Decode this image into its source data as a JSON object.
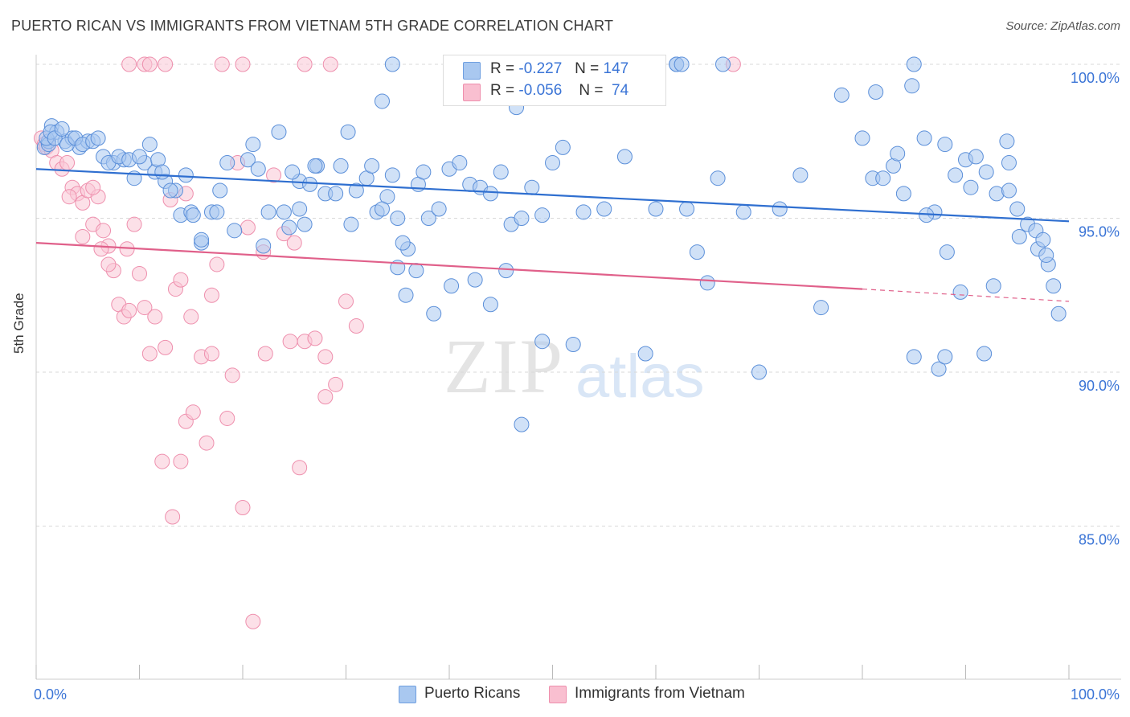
{
  "title": "PUERTO RICAN VS IMMIGRANTS FROM VIETNAM 5TH GRADE CORRELATION CHART",
  "source": "Source: ZipAtlas.com",
  "watermark": {
    "zip": "ZIP",
    "atlas": "atlas"
  },
  "legend": {
    "r_label": "R =",
    "n_label": "N =",
    "items": [
      {
        "r": "-0.227",
        "n": "147",
        "color": "#a9c8f0",
        "border": "#6f9fe0"
      },
      {
        "r": "-0.056",
        "n": " 74",
        "color": "#f9bfd0",
        "border": "#ee8fad"
      }
    ]
  },
  "colors": {
    "blue_fill": "#a9c8f0",
    "blue_stroke": "#5b8fd9",
    "blue_line": "#2f6fd0",
    "pink_fill": "#f9c6d5",
    "pink_stroke": "#ee8fad",
    "pink_line": "#e0608a"
  },
  "chart_data": {
    "type": "scatter",
    "title": "PUERTO RICAN VS IMMIGRANTS FROM VIETNAM 5TH GRADE CORRELATION CHART",
    "xlabel": "",
    "ylabel": "5th Grade",
    "xlim": [
      0,
      100
    ],
    "ylim": [
      80.5,
      100.5
    ],
    "x_tick_labels": [
      "0.0%",
      "100.0%"
    ],
    "y_ticks": [
      85,
      90,
      95,
      100
    ],
    "y_tick_labels": [
      "85.0%",
      "90.0%",
      "95.0%",
      "100.0%"
    ],
    "grid": true,
    "legend_position": "bottom",
    "series": [
      {
        "name": "Puerto Ricans",
        "r": -0.227,
        "n": 147,
        "trend": {
          "x0": 0,
          "y0": 96.6,
          "x1": 100,
          "y1": 94.9
        },
        "points": [
          [
            0.8,
            97.3
          ],
          [
            1.2,
            97.5
          ],
          [
            1.5,
            98.0
          ],
          [
            2.0,
            97.8
          ],
          [
            2.8,
            97.5
          ],
          [
            3.5,
            97.6
          ],
          [
            4.2,
            97.3
          ],
          [
            5.0,
            97.5
          ],
          [
            6.5,
            97.0
          ],
          [
            7.5,
            96.8
          ],
          [
            8.5,
            96.9
          ],
          [
            9.5,
            96.3
          ],
          [
            10.5,
            96.8
          ],
          [
            11.5,
            96.5
          ],
          [
            12.5,
            96.2
          ],
          [
            13.5,
            95.9
          ],
          [
            1.2,
            97.4
          ],
          [
            1.0,
            97.6
          ],
          [
            1.4,
            97.8
          ],
          [
            1.8,
            97.6
          ],
          [
            2.5,
            97.9
          ],
          [
            3.0,
            97.4
          ],
          [
            3.8,
            97.6
          ],
          [
            4.5,
            97.4
          ],
          [
            5.5,
            97.5
          ],
          [
            6.0,
            97.6
          ],
          [
            7.0,
            96.8
          ],
          [
            8.0,
            97.0
          ],
          [
            9.0,
            96.9
          ],
          [
            10.0,
            97.0
          ],
          [
            11.0,
            97.4
          ],
          [
            11.8,
            96.9
          ],
          [
            12.2,
            96.5
          ],
          [
            13.0,
            95.9
          ],
          [
            14.0,
            95.1
          ],
          [
            15.0,
            95.2
          ],
          [
            16.0,
            94.2
          ],
          [
            17.0,
            95.2
          ],
          [
            17.8,
            95.9
          ],
          [
            18.5,
            96.8
          ],
          [
            19.2,
            94.6
          ],
          [
            20.5,
            96.9
          ],
          [
            21.5,
            96.6
          ],
          [
            22.5,
            95.2
          ],
          [
            23.5,
            97.8
          ],
          [
            24.0,
            95.2
          ],
          [
            24.5,
            94.7
          ],
          [
            25.5,
            95.3
          ],
          [
            25.5,
            96.2
          ],
          [
            26.5,
            96.1
          ],
          [
            27.2,
            96.7
          ],
          [
            28.0,
            95.8
          ],
          [
            29.0,
            95.8
          ],
          [
            29.5,
            96.7
          ],
          [
            30.2,
            97.8
          ],
          [
            30.5,
            94.8
          ],
          [
            31.0,
            95.9
          ],
          [
            32.0,
            96.3
          ],
          [
            33.0,
            95.2
          ],
          [
            34.0,
            95.7
          ],
          [
            34.5,
            96.4
          ],
          [
            35.0,
            95.0
          ],
          [
            36.0,
            94.0
          ],
          [
            37.0,
            96.1
          ],
          [
            37.5,
            96.5
          ],
          [
            38.0,
            95.0
          ],
          [
            39.0,
            95.3
          ],
          [
            40.0,
            96.6
          ],
          [
            41.0,
            96.8
          ],
          [
            42.0,
            96.1
          ],
          [
            43.0,
            96.0
          ],
          [
            44.0,
            95.8
          ],
          [
            45.0,
            96.5
          ],
          [
            46.0,
            94.8
          ],
          [
            47.0,
            95.0
          ],
          [
            48.0,
            96.0
          ],
          [
            49.0,
            95.1
          ],
          [
            50.0,
            96.8
          ],
          [
            51.0,
            97.3
          ],
          [
            53.0,
            95.2
          ],
          [
            16.0,
            94.3
          ],
          [
            17.5,
            95.2
          ],
          [
            14.5,
            96.4
          ],
          [
            15.2,
            95.1
          ],
          [
            21.0,
            97.4
          ],
          [
            26.0,
            94.8
          ],
          [
            27.0,
            96.7
          ],
          [
            24.8,
            96.5
          ],
          [
            22.0,
            94.1
          ],
          [
            33.5,
            95.3
          ],
          [
            35.5,
            94.2
          ],
          [
            32.5,
            96.7
          ],
          [
            35.0,
            93.4
          ],
          [
            35.8,
            92.5
          ],
          [
            36.8,
            93.3
          ],
          [
            38.5,
            91.9
          ],
          [
            40.2,
            92.8
          ],
          [
            42.5,
            93.0
          ],
          [
            44.0,
            92.2
          ],
          [
            45.5,
            93.3
          ],
          [
            47.0,
            88.3
          ],
          [
            49.0,
            91.0
          ],
          [
            52.0,
            90.9
          ],
          [
            55.0,
            95.3
          ],
          [
            57.0,
            97.0
          ],
          [
            58.0,
            100.0
          ],
          [
            59.0,
            90.6
          ],
          [
            60.0,
            95.3
          ],
          [
            62.0,
            100.0
          ],
          [
            63.0,
            95.3
          ],
          [
            64.0,
            93.9
          ],
          [
            65.0,
            92.9
          ],
          [
            66.0,
            96.3
          ],
          [
            68.5,
            95.2
          ],
          [
            70.0,
            90.0
          ],
          [
            72.0,
            95.3
          ],
          [
            74.0,
            96.4
          ],
          [
            76.0,
            92.1
          ],
          [
            78.0,
            99.0
          ],
          [
            80.0,
            97.6
          ],
          [
            81.0,
            96.3
          ],
          [
            82.0,
            96.3
          ],
          [
            83.0,
            96.7
          ],
          [
            84.0,
            95.8
          ],
          [
            85.0,
            100.0
          ],
          [
            86.0,
            97.6
          ],
          [
            87.0,
            95.2
          ],
          [
            88.0,
            97.4
          ],
          [
            89.0,
            96.4
          ],
          [
            90.0,
            96.9
          ],
          [
            91.0,
            97.0
          ],
          [
            92.0,
            96.5
          ],
          [
            93.0,
            95.8
          ],
          [
            94.0,
            97.5
          ],
          [
            95.0,
            95.3
          ],
          [
            96.0,
            94.8
          ],
          [
            97.0,
            94.0
          ],
          [
            98.0,
            93.5
          ],
          [
            98.5,
            92.8
          ],
          [
            99.0,
            91.9
          ],
          [
            34.5,
            100.0
          ],
          [
            49.5,
            100.0
          ],
          [
            54.5,
            100.0
          ],
          [
            62.0,
            100.0
          ],
          [
            66.5,
            100.0
          ],
          [
            62.5,
            100.0
          ],
          [
            33.5,
            98.8
          ],
          [
            46.5,
            98.6
          ],
          [
            81.3,
            99.1
          ],
          [
            84.8,
            99.3
          ],
          [
            85.0,
            90.5
          ],
          [
            95.2,
            94.4
          ],
          [
            96.8,
            94.6
          ],
          [
            97.8,
            93.8
          ],
          [
            97.5,
            94.3
          ],
          [
            94.2,
            95.9
          ],
          [
            88.2,
            93.9
          ],
          [
            89.5,
            92.6
          ],
          [
            92.7,
            92.8
          ],
          [
            87.4,
            90.1
          ],
          [
            88.0,
            90.5
          ],
          [
            91.8,
            90.6
          ],
          [
            94.2,
            96.8
          ],
          [
            90.5,
            96.0
          ],
          [
            86.2,
            95.1
          ],
          [
            83.4,
            97.1
          ]
        ]
      },
      {
        "name": "Immigrants from Vietnam",
        "r": -0.056,
        "n": 74,
        "trend": {
          "x0": 0,
          "y0": 94.2,
          "x1": 80,
          "y1": 92.7,
          "dash_to_x": 100,
          "dash_to_y": 92.3
        },
        "points": [
          [
            0.5,
            97.6
          ],
          [
            0.8,
            97.4
          ],
          [
            1.0,
            97.3
          ],
          [
            1.2,
            97.5
          ],
          [
            1.5,
            97.2
          ],
          [
            2.0,
            96.8
          ],
          [
            2.5,
            96.6
          ],
          [
            3.0,
            96.8
          ],
          [
            3.5,
            96.0
          ],
          [
            4.0,
            95.8
          ],
          [
            4.5,
            95.5
          ],
          [
            5.0,
            95.9
          ],
          [
            5.5,
            94.8
          ],
          [
            6.0,
            95.7
          ],
          [
            6.5,
            94.6
          ],
          [
            7.0,
            94.1
          ],
          [
            7.5,
            93.3
          ],
          [
            8.0,
            92.2
          ],
          [
            8.5,
            91.8
          ],
          [
            9.0,
            92.0
          ],
          [
            9.5,
            94.8
          ],
          [
            10.0,
            93.2
          ],
          [
            10.5,
            92.1
          ],
          [
            11.0,
            90.6
          ],
          [
            11.5,
            91.8
          ],
          [
            12.5,
            90.8
          ],
          [
            13.0,
            95.6
          ],
          [
            13.5,
            92.7
          ],
          [
            14.0,
            93.0
          ],
          [
            14.5,
            95.8
          ],
          [
            15.0,
            91.8
          ],
          [
            16.0,
            90.5
          ],
          [
            17.0,
            92.5
          ],
          [
            17.5,
            93.5
          ],
          [
            18.5,
            88.5
          ],
          [
            19.0,
            89.9
          ],
          [
            20.0,
            85.6
          ],
          [
            21.0,
            81.9
          ],
          [
            22.0,
            93.9
          ],
          [
            23.0,
            96.4
          ],
          [
            24.0,
            94.5
          ],
          [
            25.0,
            94.2
          ],
          [
            26.0,
            91.0
          ],
          [
            27.0,
            91.1
          ],
          [
            28.0,
            90.5
          ],
          [
            29.0,
            89.6
          ],
          [
            30.0,
            92.3
          ],
          [
            31.0,
            91.5
          ],
          [
            9.0,
            100.0
          ],
          [
            10.5,
            100.0
          ],
          [
            11.0,
            100.0
          ],
          [
            12.5,
            100.0
          ],
          [
            18.0,
            100.0
          ],
          [
            20.0,
            100.0
          ],
          [
            26.0,
            100.0
          ],
          [
            28.5,
            100.0
          ],
          [
            67.5,
            100.0
          ],
          [
            4.5,
            94.4
          ],
          [
            6.3,
            94.0
          ],
          [
            7.0,
            93.5
          ],
          [
            8.8,
            94.0
          ],
          [
            12.2,
            87.1
          ],
          [
            13.2,
            85.3
          ],
          [
            14.0,
            87.1
          ],
          [
            14.5,
            88.4
          ],
          [
            15.2,
            88.7
          ],
          [
            16.5,
            87.7
          ],
          [
            17.0,
            90.6
          ],
          [
            19.5,
            96.8
          ],
          [
            20.5,
            94.7
          ],
          [
            22.2,
            90.6
          ],
          [
            24.6,
            91.0
          ],
          [
            25.5,
            86.9
          ],
          [
            28.0,
            89.2
          ],
          [
            3.2,
            95.7
          ],
          [
            5.5,
            96.0
          ]
        ]
      }
    ]
  },
  "bottom_legend": [
    {
      "label": "Puerto Ricans"
    },
    {
      "label": "Immigrants from Vietnam"
    }
  ]
}
